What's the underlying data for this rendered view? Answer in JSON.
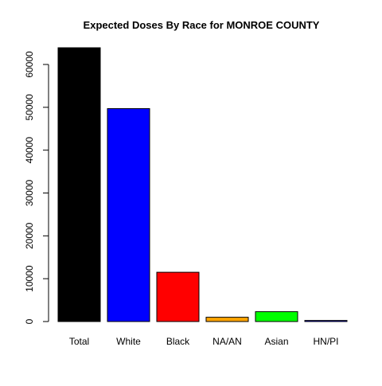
{
  "chart_data": {
    "type": "bar",
    "title": "Expected Doses By Race for MONROE COUNTY",
    "xlabel": "",
    "ylabel": "",
    "categories": [
      "Total",
      "White",
      "Black",
      "NA/AN",
      "Asian",
      "HN/PI"
    ],
    "values": [
      63900,
      49700,
      11500,
      1000,
      2300,
      250
    ],
    "colors": [
      "#000000",
      "#0000ff",
      "#ff0000",
      "#ffa500",
      "#00ff00",
      "#0000ff"
    ],
    "yticks": [
      0,
      10000,
      20000,
      30000,
      40000,
      50000,
      60000
    ],
    "ylim": [
      0,
      63900
    ],
    "grid": false,
    "legend": "none"
  }
}
